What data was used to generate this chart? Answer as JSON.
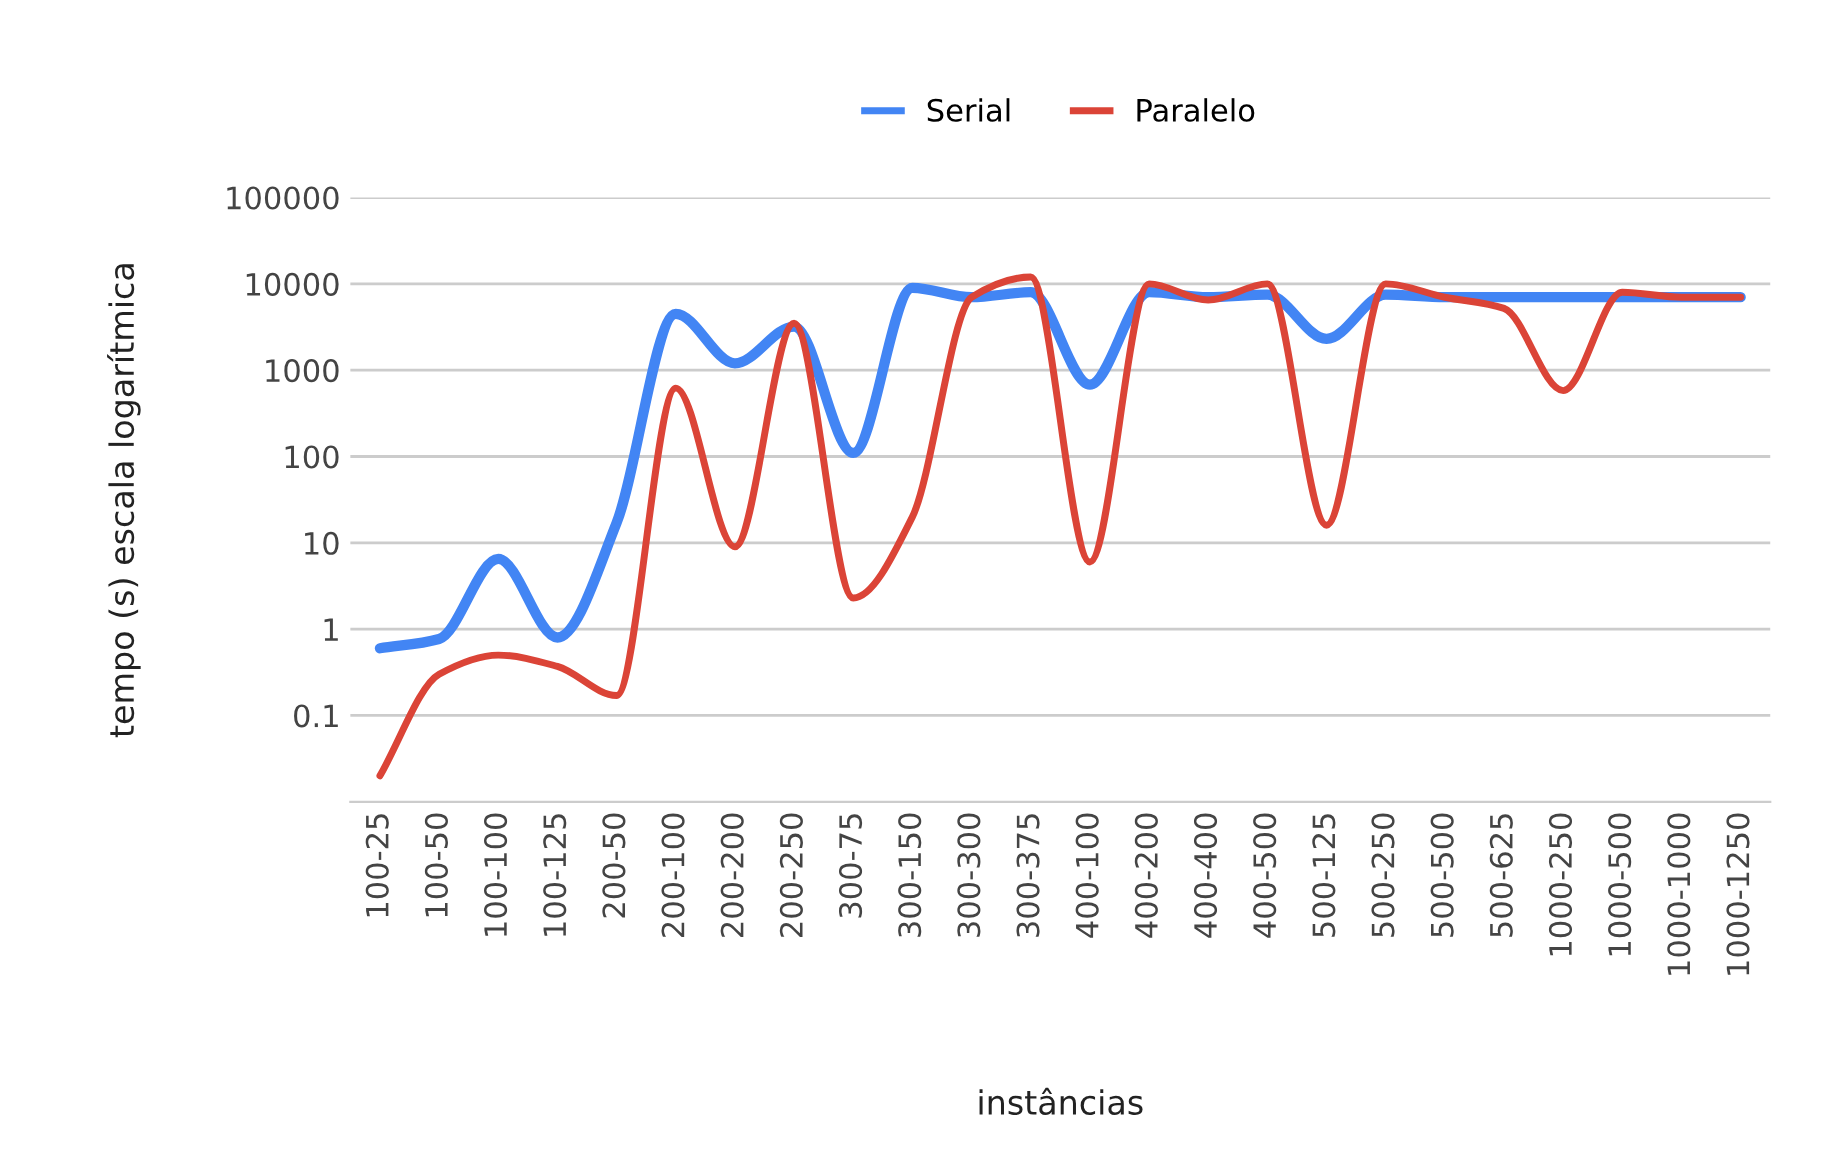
{
  "chart_data": {
    "type": "line",
    "xlabel": "instâncias",
    "ylabel": "tempo (s) escala logarítmica",
    "categories": [
      "100-25",
      "100-50",
      "100-100",
      "100-125",
      "200-50",
      "200-100",
      "200-200",
      "200-250",
      "300-75",
      "300-150",
      "300-300",
      "300-375",
      "400-100",
      "400-200",
      "400-400",
      "400-500",
      "500-125",
      "500-250",
      "500-500",
      "500-625",
      "1000-250",
      "1000-500",
      "1000-1000",
      "1000-1250"
    ],
    "series": [
      {
        "name": "Serial",
        "color": "#4285f4",
        "values": [
          0.6,
          0.77,
          6.5,
          0.8,
          17,
          4500,
          1200,
          3200,
          110,
          9000,
          7000,
          8000,
          680,
          8000,
          7000,
          7500,
          2300,
          7500,
          7000,
          7000,
          7000,
          7000,
          7000,
          7000
        ]
      },
      {
        "name": "Paralelo",
        "color": "#db4437",
        "values": [
          0.02,
          0.3,
          0.5,
          0.37,
          0.17,
          620,
          9,
          3500,
          2.3,
          20,
          7000,
          12000,
          6,
          10000,
          6500,
          10000,
          16,
          10000,
          7000,
          5200,
          580,
          8000,
          7000,
          7000
        ]
      }
    ],
    "log": "y",
    "ylim": [
      0.01,
      100000
    ],
    "yticks": [
      0.1,
      1,
      10,
      100,
      1000,
      10000,
      100000
    ],
    "grid": "y",
    "legend": "top",
    "line_style": "solid",
    "marker": "none"
  }
}
